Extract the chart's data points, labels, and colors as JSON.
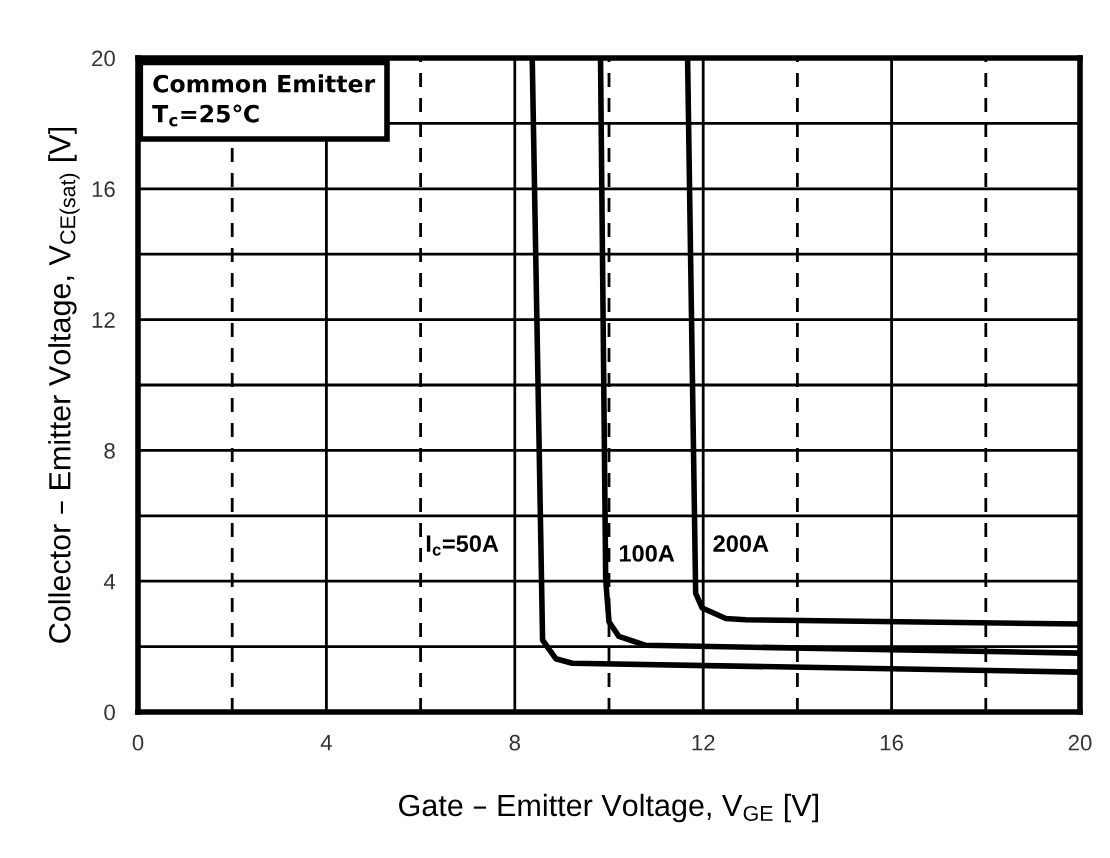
{
  "chart_data": {
    "type": "line",
    "xlabel": "Gate – Emitter Voltage, V$_{GE}$ [V]",
    "ylabel": "Collector – Emitter Voltage, V$_{CE(sat)}$ [V]",
    "xlim": [
      0,
      20
    ],
    "ylim": [
      0,
      20
    ],
    "xticks": [
      0,
      {
        "value": 2,
        "label": null
      },
      4,
      {
        "value": 6,
        "label": null
      },
      8,
      {
        "value": 10,
        "label": null
      },
      12,
      {
        "value": 14,
        "label": null
      },
      16,
      {
        "value": 18,
        "label": null
      },
      20
    ],
    "yticks": [
      0,
      {
        "value": 2,
        "label": null
      },
      4,
      {
        "value": 6,
        "label": null
      },
      8,
      {
        "value": 10,
        "label": null
      },
      12,
      {
        "value": 14,
        "label": null
      },
      16,
      {
        "value": 18,
        "label": null
      },
      20
    ],
    "grid": true,
    "marker": "none",
    "line_style": "solid",
    "series": [
      {
        "color": "#000000",
        "x": [
          8.37,
          8.59,
          8.87,
          9.22,
          20
        ],
        "values": [
          20,
          2.2,
          1.63,
          1.49,
          1.22
        ]
      },
      {
        "color": "#000000",
        "x": [
          9.82,
          9.93,
          10.0,
          10.21,
          10.78,
          20
        ],
        "values": [
          20,
          4.04,
          2.76,
          2.31,
          2.04,
          1.8
        ]
      },
      {
        "color": "#000000",
        "x": [
          11.67,
          11.84,
          11.98,
          12.48,
          12.9,
          20
        ],
        "values": [
          19.86,
          3.63,
          3.18,
          2.86,
          2.82,
          2.69
        ]
      }
    ],
    "annotations": [
      "Common Emitter\nT$_{c}$=25℃",
      "I$_{c}$=50A",
      "100A",
      "200A"
    ]
  }
}
